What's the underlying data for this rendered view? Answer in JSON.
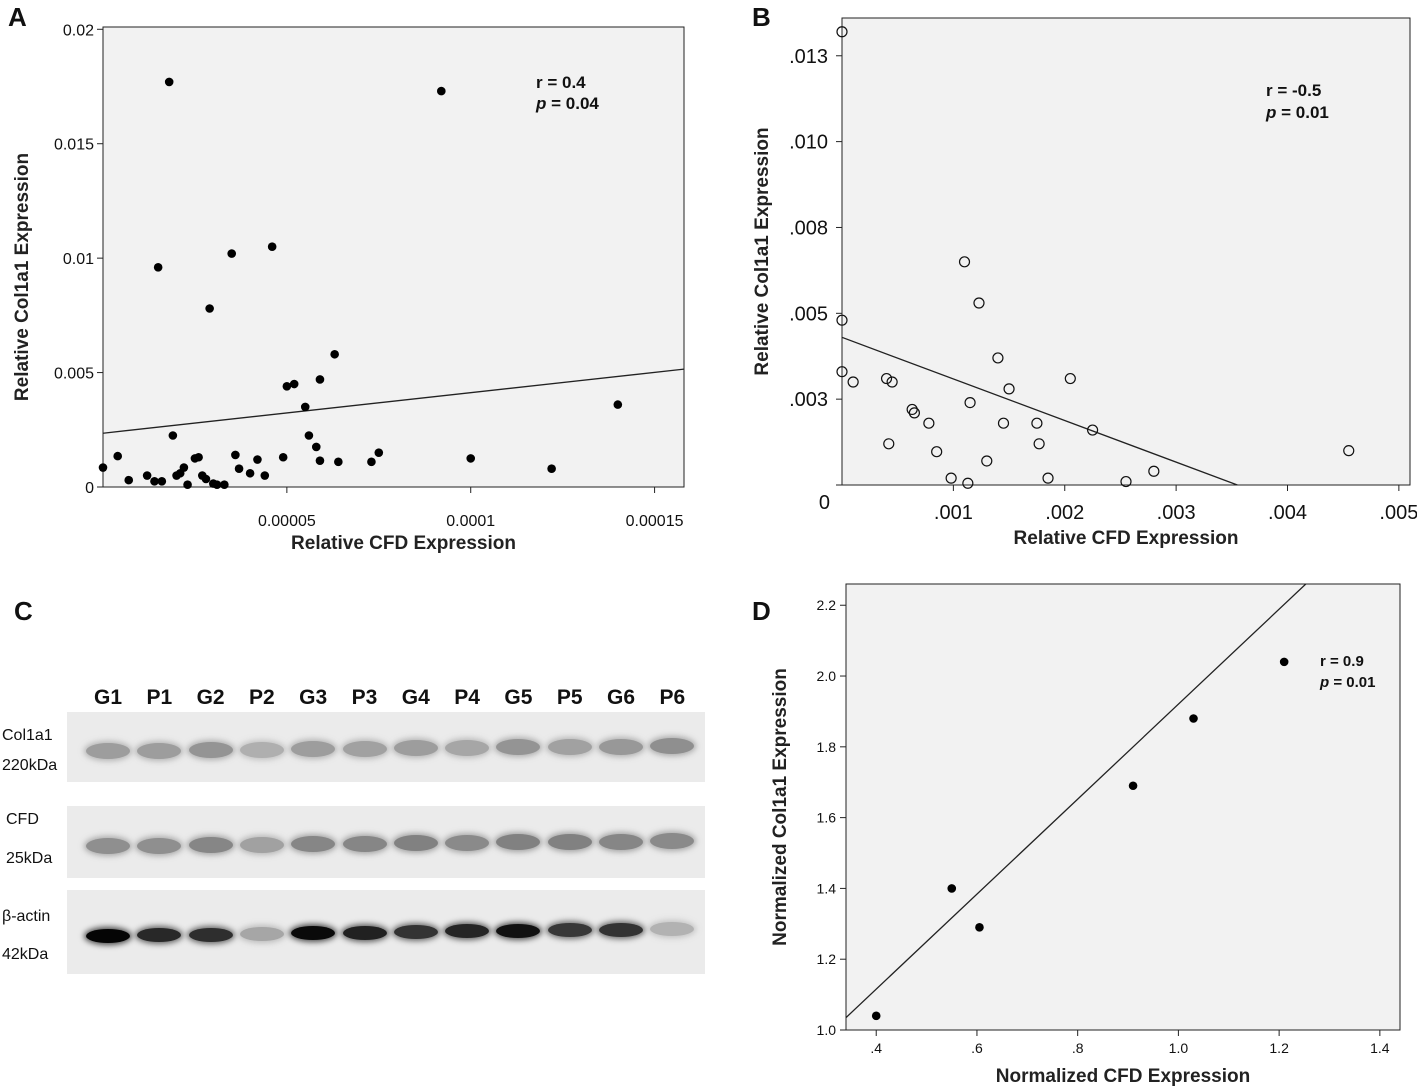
{
  "panels": {
    "A": {
      "letter": "A"
    },
    "B": {
      "letter": "B"
    },
    "C": {
      "letter": "C"
    },
    "D": {
      "letter": "D"
    }
  },
  "chart_data": [
    {
      "id": "A",
      "type": "scatter",
      "title": "",
      "xlabel": "Relative CFD Expression",
      "ylabel": "Relative Col1a1 Expression",
      "xlim": [
        0,
        0.000158
      ],
      "ylim": [
        0,
        0.0201
      ],
      "xticks": [
        5e-05,
        0.0001,
        0.00015
      ],
      "xtick_labels": [
        "0.00005",
        "0.0001",
        "0.00015"
      ],
      "yticks": [
        0,
        0.005,
        0.01,
        0.015,
        0.02
      ],
      "ytick_labels": [
        "0",
        "0.005",
        "0.01",
        "0.015",
        "0.02"
      ],
      "grid": false,
      "marker": "filled",
      "annotation": {
        "r_label": "r = 0.4",
        "p_symbol": "p",
        "p_value": "= 0.04"
      },
      "fit_line": {
        "x": [
          0,
          0.000158
        ],
        "y": [
          0.00235,
          0.00515
        ]
      },
      "x": [
        0.0,
        4e-06,
        7e-06,
        1.2e-05,
        1.4e-05,
        1.5e-05,
        1.6e-05,
        1.8e-05,
        1.9e-05,
        2e-05,
        2.1e-05,
        2.2e-05,
        2.3e-05,
        2.5e-05,
        2.6e-05,
        2.7e-05,
        2.8e-05,
        2.9e-05,
        3e-05,
        3.1e-05,
        3.3e-05,
        3.5e-05,
        3.6e-05,
        3.7e-05,
        4e-05,
        4.2e-05,
        4.4e-05,
        4.6e-05,
        4.9e-05,
        5e-05,
        5.2e-05,
        5.5e-05,
        5.6e-05,
        5.8e-05,
        5.9e-05,
        5.9e-05,
        6.3e-05,
        6.4e-05,
        7.3e-05,
        7.5e-05,
        9.2e-05,
        0.0001,
        0.000122,
        0.00014
      ],
      "y": [
        0.00085,
        0.00135,
        0.0003,
        0.0005,
        0.00025,
        0.0096,
        0.00025,
        0.0177,
        0.00225,
        0.0005,
        0.0006,
        0.00085,
        0.0001,
        0.00125,
        0.0013,
        0.0005,
        0.00035,
        0.0078,
        0.00015,
        0.0001,
        0.0001,
        0.0102,
        0.0014,
        0.0008,
        0.0006,
        0.0012,
        0.0005,
        0.0105,
        0.0013,
        0.0044,
        0.0045,
        0.0035,
        0.00225,
        0.00175,
        0.00115,
        0.0047,
        0.0058,
        0.0011,
        0.0011,
        0.0015,
        0.0173,
        0.00125,
        0.0008,
        0.0036
      ]
    },
    {
      "id": "B",
      "type": "scatter",
      "title": "",
      "xlabel": "Relative CFD Expression",
      "ylabel": "Relative Col1a1 Expression",
      "xlim": [
        0,
        0.0051
      ],
      "ylim": [
        0,
        0.0136
      ],
      "xticks": [
        0.001,
        0.002,
        0.003,
        0.004,
        0.005
      ],
      "xtick_labels": [
        ".001",
        ".002",
        ".003",
        ".004",
        ".005"
      ],
      "yticks": [
        0,
        0.0025,
        0.005,
        0.0075,
        0.01,
        0.0125
      ],
      "ytick_labels": [
        "0",
        ".003",
        ".005",
        ".008",
        ".010",
        ".013"
      ],
      "grid": false,
      "marker": "open",
      "annotation": {
        "r_label": "r = -0.5",
        "p_symbol": "p",
        "p_value": "= 0.01"
      },
      "fit_line": {
        "x": [
          0,
          0.00355
        ],
        "y": [
          0.0043,
          0
        ]
      },
      "x": [
        0.0,
        0.0,
        0.0,
        0.0001,
        0.0004,
        0.00042,
        0.00045,
        0.00063,
        0.00065,
        0.00078,
        0.00085,
        0.00098,
        0.0011,
        0.00113,
        0.00115,
        0.00123,
        0.0013,
        0.0014,
        0.00145,
        0.0015,
        0.00175,
        0.00177,
        0.00185,
        0.00205,
        0.00225,
        0.00255,
        0.0028,
        0.00455
      ],
      "y": [
        0.0132,
        0.0048,
        0.0033,
        0.003,
        0.0031,
        0.0012,
        0.003,
        0.0022,
        0.0021,
        0.0018,
        0.00097,
        0.0002,
        0.0065,
        5e-05,
        0.0024,
        0.0053,
        0.0007,
        0.0037,
        0.0018,
        0.0028,
        0.0018,
        0.0012,
        0.0002,
        0.0031,
        0.0016,
        0.0001,
        0.0004,
        0.001
      ]
    },
    {
      "id": "D",
      "type": "scatter",
      "title": "",
      "xlabel": "Normalized CFD Expression",
      "ylabel": "Normalized Col1a1 Expression",
      "xlim": [
        0.34,
        1.44
      ],
      "ylim": [
        1.0,
        2.26
      ],
      "xticks": [
        0.4,
        0.6,
        0.8,
        1.0,
        1.2,
        1.4
      ],
      "xtick_labels": [
        ".4",
        ".6",
        ".8",
        "1.0",
        "1.2",
        "1.4"
      ],
      "yticks": [
        1.0,
        1.2,
        1.4,
        1.6,
        1.8,
        2.0,
        2.2
      ],
      "ytick_labels": [
        "1.0",
        "1.2",
        "1.4",
        "1.6",
        "1.8",
        "2.0",
        "2.2"
      ],
      "grid": false,
      "marker": "filled",
      "annotation": {
        "r_label": "r  = 0.9",
        "p_symbol": "p",
        "p_value": "= 0.01"
      },
      "fit_line": {
        "x": [
          0.34,
          1.253
        ],
        "y": [
          1.035,
          2.26
        ]
      },
      "x": [
        0.4,
        0.55,
        0.605,
        0.91,
        1.03,
        1.21
      ],
      "y": [
        1.04,
        1.4,
        1.29,
        1.69,
        1.88,
        2.04
      ]
    }
  ],
  "western_blot": {
    "lanes": [
      "G1",
      "P1",
      "G2",
      "P2",
      "G3",
      "P3",
      "G4",
      "P4",
      "G5",
      "P5",
      "G6",
      "P6"
    ],
    "blots": [
      {
        "protein": "Col1a1",
        "size": "220kDa",
        "intensity": [
          0.34,
          0.34,
          0.38,
          0.26,
          0.34,
          0.32,
          0.34,
          0.3,
          0.38,
          0.32,
          0.36,
          0.4
        ]
      },
      {
        "protein": "CFD",
        "size": "25kDa",
        "intensity": [
          0.4,
          0.4,
          0.44,
          0.32,
          0.44,
          0.44,
          0.46,
          0.42,
          0.46,
          0.46,
          0.44,
          0.42
        ]
      },
      {
        "protein": "β-actin",
        "size": "42kDa",
        "intensity": [
          1.0,
          0.85,
          0.82,
          0.3,
          0.98,
          0.88,
          0.8,
          0.86,
          0.95,
          0.78,
          0.8,
          0.25
        ]
      }
    ]
  }
}
